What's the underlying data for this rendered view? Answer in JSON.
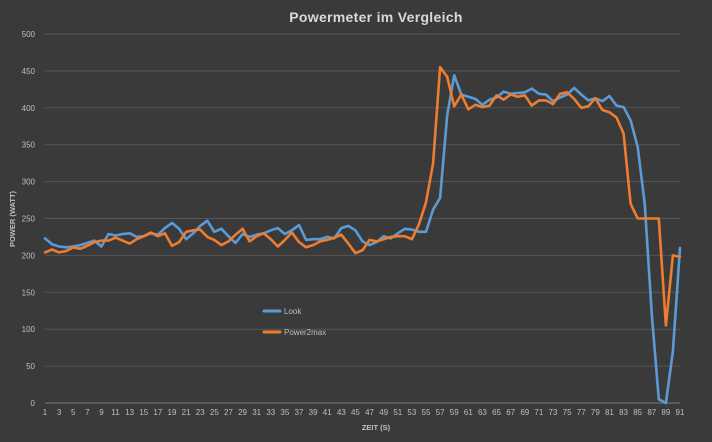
{
  "chart_data": {
    "type": "line",
    "title": "Powermeter im Vergleich",
    "xlabel": "ZEIT (S)",
    "ylabel": "POWER (WATT)",
    "xlim": [
      1,
      91
    ],
    "ylim": [
      0,
      500
    ],
    "yticks": [
      0,
      50,
      100,
      150,
      200,
      250,
      300,
      350,
      400,
      450,
      500
    ],
    "xticks": [
      1,
      3,
      5,
      7,
      9,
      11,
      13,
      15,
      17,
      19,
      21,
      23,
      25,
      27,
      29,
      31,
      33,
      35,
      37,
      39,
      41,
      43,
      45,
      47,
      49,
      51,
      53,
      55,
      57,
      59,
      61,
      63,
      65,
      67,
      69,
      71,
      73,
      75,
      77,
      79,
      81,
      83,
      85,
      87,
      89,
      91
    ],
    "grid": true,
    "legend_position": "center-left",
    "x": [
      1,
      2,
      3,
      4,
      5,
      6,
      7,
      8,
      9,
      10,
      11,
      12,
      13,
      14,
      15,
      16,
      17,
      18,
      19,
      20,
      21,
      22,
      23,
      24,
      25,
      26,
      27,
      28,
      29,
      30,
      31,
      32,
      33,
      34,
      35,
      36,
      37,
      38,
      39,
      40,
      41,
      42,
      43,
      44,
      45,
      46,
      47,
      48,
      49,
      50,
      51,
      52,
      53,
      54,
      55,
      56,
      57,
      58,
      59,
      60,
      61,
      62,
      63,
      64,
      65,
      66,
      67,
      68,
      69,
      70,
      71,
      72,
      73,
      74,
      75,
      76,
      77,
      78,
      79,
      80,
      81,
      82,
      83,
      84,
      85,
      86,
      87,
      88,
      89,
      90,
      91
    ],
    "series": [
      {
        "name": "Look",
        "color": "#5b9bd5",
        "values": [
          223,
          215,
          212,
          211,
          212,
          214,
          217,
          220,
          212,
          229,
          227,
          229,
          230,
          225,
          226,
          230,
          228,
          237,
          244,
          236,
          222,
          230,
          240,
          247,
          232,
          236,
          226,
          217,
          229,
          225,
          228,
          230,
          234,
          237,
          229,
          234,
          241,
          221,
          222,
          222,
          225,
          223,
          237,
          240,
          234,
          219,
          214,
          218,
          226,
          223,
          230,
          236,
          235,
          232,
          232,
          262,
          278,
          390,
          444,
          418,
          415,
          412,
          404,
          411,
          414,
          422,
          419,
          420,
          421,
          426,
          419,
          418,
          409,
          414,
          418,
          427,
          418,
          410,
          413,
          409,
          416,
          403,
          401,
          383,
          347,
          270,
          120,
          5,
          0,
          70,
          210
        ]
      },
      {
        "name": "Power2max",
        "color": "#ed7d31",
        "values": [
          204,
          208,
          204,
          206,
          211,
          209,
          213,
          218,
          220,
          220,
          224,
          220,
          216,
          222,
          226,
          231,
          226,
          230,
          213,
          218,
          232,
          234,
          235,
          225,
          221,
          214,
          219,
          228,
          236,
          219,
          226,
          230,
          222,
          212,
          221,
          231,
          218,
          211,
          214,
          219,
          221,
          224,
          228,
          216,
          203,
          207,
          221,
          219,
          222,
          225,
          226,
          226,
          222,
          242,
          272,
          325,
          455,
          442,
          402,
          418,
          398,
          404,
          401,
          403,
          417,
          411,
          418,
          415,
          417,
          403,
          410,
          410,
          405,
          419,
          421,
          412,
          400,
          402,
          413,
          397,
          394,
          387,
          365,
          270,
          250,
          250,
          250,
          250,
          105,
          200,
          198
        ]
      }
    ]
  }
}
